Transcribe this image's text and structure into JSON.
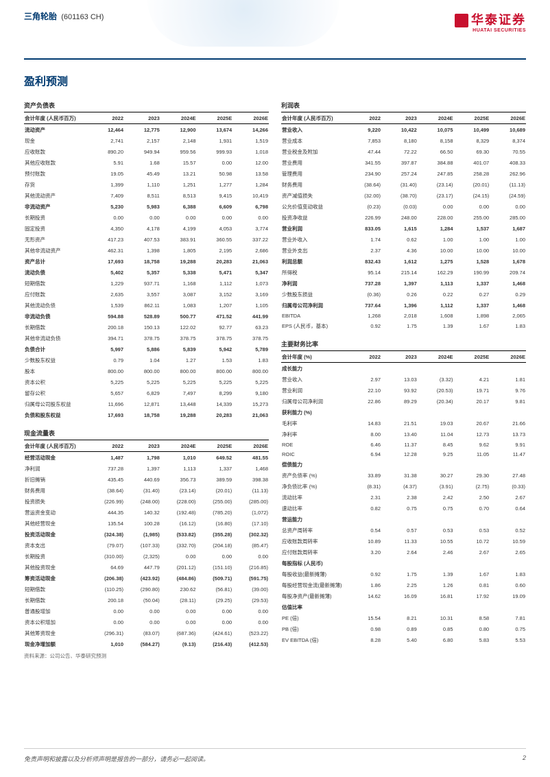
{
  "header": {
    "company_name": "三角轮胎",
    "company_code": "(601163 CH)",
    "logo_cn": "华泰证券",
    "logo_en": "HUATAI SECURITIES"
  },
  "section_title": "盈利预测",
  "years": [
    "2022",
    "2023",
    "2024E",
    "2025E",
    "2026E"
  ],
  "balance_sheet": {
    "title": "资产负债表",
    "unit_label": "会计年度 (人民币百万)",
    "rows": [
      {
        "label": "流动资产",
        "bold": true,
        "v": [
          "12,464",
          "12,775",
          "12,900",
          "13,674",
          "14,266"
        ]
      },
      {
        "label": "现金",
        "v": [
          "2,741",
          "2,157",
          "2,148",
          "1,931",
          "1,519"
        ]
      },
      {
        "label": "应收账款",
        "v": [
          "890.20",
          "949.94",
          "959.56",
          "999.93",
          "1,018"
        ]
      },
      {
        "label": "其他应收账款",
        "v": [
          "5.91",
          "1.68",
          "15.57",
          "0.00",
          "12.00"
        ]
      },
      {
        "label": "预付账款",
        "v": [
          "19.05",
          "45.49",
          "13.21",
          "50.98",
          "13.58"
        ]
      },
      {
        "label": "存货",
        "v": [
          "1,399",
          "1,110",
          "1,251",
          "1,277",
          "1,284"
        ]
      },
      {
        "label": "其他流动资产",
        "v": [
          "7,409",
          "8,511",
          "8,513",
          "9,415",
          "10,419"
        ]
      },
      {
        "label": "非流动资产",
        "bold": true,
        "v": [
          "5,230",
          "5,983",
          "6,388",
          "6,609",
          "6,798"
        ]
      },
      {
        "label": "长期投资",
        "v": [
          "0.00",
          "0.00",
          "0.00",
          "0.00",
          "0.00"
        ]
      },
      {
        "label": "固定投资",
        "v": [
          "4,350",
          "4,178",
          "4,199",
          "4,053",
          "3,774"
        ]
      },
      {
        "label": "无形资产",
        "v": [
          "417.23",
          "407.53",
          "383.91",
          "360.55",
          "337.22"
        ]
      },
      {
        "label": "其他非流动资产",
        "v": [
          "462.31",
          "1,398",
          "1,805",
          "2,195",
          "2,686"
        ]
      },
      {
        "label": "资产总计",
        "bold": true,
        "v": [
          "17,693",
          "18,758",
          "19,288",
          "20,283",
          "21,063"
        ]
      },
      {
        "label": "流动负债",
        "bold": true,
        "v": [
          "5,402",
          "5,357",
          "5,338",
          "5,471",
          "5,347"
        ]
      },
      {
        "label": "短期借款",
        "v": [
          "1,229",
          "937.71",
          "1,168",
          "1,112",
          "1,073"
        ]
      },
      {
        "label": "应付账款",
        "v": [
          "2,635",
          "3,557",
          "3,087",
          "3,152",
          "3,169"
        ]
      },
      {
        "label": "其他流动负债",
        "v": [
          "1,539",
          "862.11",
          "1,083",
          "1,207",
          "1,105"
        ]
      },
      {
        "label": "非流动负债",
        "bold": true,
        "v": [
          "594.88",
          "528.89",
          "500.77",
          "471.52",
          "441.99"
        ]
      },
      {
        "label": "长期借款",
        "v": [
          "200.18",
          "150.13",
          "122.02",
          "92.77",
          "63.23"
        ]
      },
      {
        "label": "其他非流动负债",
        "v": [
          "394.71",
          "378.75",
          "378.75",
          "378.75",
          "378.75"
        ]
      },
      {
        "label": "负债合计",
        "bold": true,
        "v": [
          "5,997",
          "5,886",
          "5,839",
          "5,942",
          "5,789"
        ]
      },
      {
        "label": "少数股东权益",
        "v": [
          "0.79",
          "1.04",
          "1.27",
          "1.53",
          "1.83"
        ]
      },
      {
        "label": "股本",
        "v": [
          "800.00",
          "800.00",
          "800.00",
          "800.00",
          "800.00"
        ]
      },
      {
        "label": "资本公积",
        "v": [
          "5,225",
          "5,225",
          "5,225",
          "5,225",
          "5,225"
        ]
      },
      {
        "label": "留存公积",
        "v": [
          "5,657",
          "6,829",
          "7,497",
          "8,299",
          "9,180"
        ]
      },
      {
        "label": "归属母公司股东权益",
        "v": [
          "11,696",
          "12,871",
          "13,448",
          "14,339",
          "15,273"
        ]
      },
      {
        "label": "负债和股东权益",
        "bold": true,
        "v": [
          "17,693",
          "18,758",
          "19,288",
          "20,283",
          "21,063"
        ]
      }
    ]
  },
  "cash_flow": {
    "title": "现金流量表",
    "unit_label": "会计年度 (人民币百万)",
    "rows": [
      {
        "label": "经营活动现金",
        "bold": true,
        "v": [
          "1,487",
          "1,798",
          "1,010",
          "649.52",
          "481.55"
        ]
      },
      {
        "label": "净利润",
        "v": [
          "737.28",
          "1,397",
          "1,113",
          "1,337",
          "1,468"
        ]
      },
      {
        "label": "折旧摊销",
        "v": [
          "435.45",
          "440.69",
          "356.73",
          "389.59",
          "398.38"
        ]
      },
      {
        "label": "财务费用",
        "v": [
          "(38.64)",
          "(31.40)",
          "(23.14)",
          "(20.01)",
          "(11.13)"
        ]
      },
      {
        "label": "投资损失",
        "v": [
          "(226.99)",
          "(248.00)",
          "(228.00)",
          "(255.00)",
          "(285.00)"
        ]
      },
      {
        "label": "营运资金变动",
        "v": [
          "444.35",
          "140.32",
          "(192.48)",
          "(785.20)",
          "(1,072)"
        ]
      },
      {
        "label": "其他经营现金",
        "v": [
          "135.54",
          "100.28",
          "(16.12)",
          "(16.80)",
          "(17.10)"
        ]
      },
      {
        "label": "投资活动现金",
        "bold": true,
        "v": [
          "(324.38)",
          "(1,985)",
          "(533.82)",
          "(355.28)",
          "(302.32)"
        ]
      },
      {
        "label": "资本支出",
        "v": [
          "(79.07)",
          "(107.33)",
          "(332.70)",
          "(204.18)",
          "(85.47)"
        ]
      },
      {
        "label": "长期投资",
        "v": [
          "(310.00)",
          "(2,325)",
          "0.00",
          "0.00",
          "0.00"
        ]
      },
      {
        "label": "其他投资现金",
        "v": [
          "64.69",
          "447.79",
          "(201.12)",
          "(151.10)",
          "(216.85)"
        ]
      },
      {
        "label": "筹资活动现金",
        "bold": true,
        "v": [
          "(206.38)",
          "(423.92)",
          "(484.86)",
          "(509.71)",
          "(591.75)"
        ]
      },
      {
        "label": "短期借款",
        "v": [
          "(110.25)",
          "(290.80)",
          "230.62",
          "(56.81)",
          "(39.00)"
        ]
      },
      {
        "label": "长期借款",
        "v": [
          "200.18",
          "(50.04)",
          "(28.11)",
          "(29.25)",
          "(29.53)"
        ]
      },
      {
        "label": "普通股增加",
        "v": [
          "0.00",
          "0.00",
          "0.00",
          "0.00",
          "0.00"
        ]
      },
      {
        "label": "资本公积增加",
        "v": [
          "0.00",
          "0.00",
          "0.00",
          "0.00",
          "0.00"
        ]
      },
      {
        "label": "其他筹资现金",
        "v": [
          "(296.31)",
          "(83.07)",
          "(687.36)",
          "(424.61)",
          "(523.22)"
        ]
      },
      {
        "label": "现金净增加额",
        "bold": true,
        "v": [
          "1,010",
          "(584.27)",
          "(9.13)",
          "(216.43)",
          "(412.53)"
        ]
      }
    ]
  },
  "income_statement": {
    "title": "利润表",
    "unit_label": "会计年度 (人民币百万)",
    "rows": [
      {
        "label": "营业收入",
        "bold": true,
        "v": [
          "9,220",
          "10,422",
          "10,075",
          "10,499",
          "10,689"
        ]
      },
      {
        "label": "营业成本",
        "v": [
          "7,853",
          "8,180",
          "8,158",
          "8,329",
          "8,374"
        ]
      },
      {
        "label": "营业税金及附加",
        "v": [
          "47.44",
          "72.22",
          "66.50",
          "69.30",
          "70.55"
        ]
      },
      {
        "label": "营业费用",
        "v": [
          "341.55",
          "397.87",
          "384.88",
          "401.07",
          "408.33"
        ]
      },
      {
        "label": "管理费用",
        "v": [
          "234.90",
          "257.24",
          "247.85",
          "258.28",
          "262.96"
        ]
      },
      {
        "label": "财务费用",
        "v": [
          "(38.64)",
          "(31.40)",
          "(23.14)",
          "(20.01)",
          "(11.13)"
        ]
      },
      {
        "label": "资产减值损失",
        "v": [
          "(32.00)",
          "(38.70)",
          "(23.17)",
          "(24.15)",
          "(24.59)"
        ]
      },
      {
        "label": "公允价值变动收益",
        "v": [
          "(0.23)",
          "(0.03)",
          "0.00",
          "0.00",
          "0.00"
        ]
      },
      {
        "label": "投资净收益",
        "v": [
          "226.99",
          "248.00",
          "228.00",
          "255.00",
          "285.00"
        ]
      },
      {
        "label": "营业利润",
        "bold": true,
        "v": [
          "833.05",
          "1,615",
          "1,284",
          "1,537",
          "1,687"
        ]
      },
      {
        "label": "营业外收入",
        "v": [
          "1.74",
          "0.62",
          "1.00",
          "1.00",
          "1.00"
        ]
      },
      {
        "label": "营业外支出",
        "v": [
          "2.37",
          "4.36",
          "10.00",
          "10.00",
          "10.00"
        ]
      },
      {
        "label": "利润总额",
        "bold": true,
        "v": [
          "832.43",
          "1,612",
          "1,275",
          "1,528",
          "1,678"
        ]
      },
      {
        "label": "所得税",
        "v": [
          "95.14",
          "215.14",
          "162.29",
          "190.99",
          "209.74"
        ]
      },
      {
        "label": "净利润",
        "bold": true,
        "v": [
          "737.28",
          "1,397",
          "1,113",
          "1,337",
          "1,468"
        ]
      },
      {
        "label": "少数股东损益",
        "v": [
          "(0.36)",
          "0.26",
          "0.22",
          "0.27",
          "0.29"
        ]
      },
      {
        "label": "归属母公司净利润",
        "bold": true,
        "v": [
          "737.64",
          "1,396",
          "1,112",
          "1,337",
          "1,468"
        ]
      },
      {
        "label": "EBITDA",
        "v": [
          "1,268",
          "2,018",
          "1,608",
          "1,898",
          "2,065"
        ]
      },
      {
        "label": "EPS (人民币，基本)",
        "v": [
          "0.92",
          "1.75",
          "1.39",
          "1.67",
          "1.83"
        ]
      }
    ]
  },
  "ratios": {
    "title": "主要财务比率",
    "unit_label": "会计年度 (%)",
    "groups": [
      {
        "head": "成长能力",
        "rows": [
          {
            "label": "营业收入",
            "v": [
              "2.97",
              "13.03",
              "(3.32)",
              "4.21",
              "1.81"
            ]
          },
          {
            "label": "营业利润",
            "v": [
              "22.10",
              "93.92",
              "(20.53)",
              "19.71",
              "9.76"
            ]
          },
          {
            "label": "归属母公司净利润",
            "v": [
              "22.86",
              "89.29",
              "(20.34)",
              "20.17",
              "9.81"
            ]
          }
        ]
      },
      {
        "head": "获利能力 (%)",
        "rows": [
          {
            "label": "毛利率",
            "v": [
              "14.83",
              "21.51",
              "19.03",
              "20.67",
              "21.66"
            ]
          },
          {
            "label": "净利率",
            "v": [
              "8.00",
              "13.40",
              "11.04",
              "12.73",
              "13.73"
            ]
          },
          {
            "label": "ROE",
            "v": [
              "6.46",
              "11.37",
              "8.45",
              "9.62",
              "9.91"
            ]
          },
          {
            "label": "ROIC",
            "v": [
              "6.94",
              "12.28",
              "9.25",
              "11.05",
              "11.47"
            ]
          }
        ]
      },
      {
        "head": "偿债能力",
        "rows": [
          {
            "label": "资产负债率 (%)",
            "v": [
              "33.89",
              "31.38",
              "30.27",
              "29.30",
              "27.48"
            ]
          },
          {
            "label": "净负债比率 (%)",
            "v": [
              "(8.31)",
              "(4.37)",
              "(3.91)",
              "(2.75)",
              "(0.33)"
            ]
          },
          {
            "label": "流动比率",
            "v": [
              "2.31",
              "2.38",
              "2.42",
              "2.50",
              "2.67"
            ]
          },
          {
            "label": "速动比率",
            "v": [
              "0.82",
              "0.75",
              "0.75",
              "0.70",
              "0.64"
            ]
          }
        ]
      },
      {
        "head": "营运能力",
        "rows": [
          {
            "label": "总资产周转率",
            "v": [
              "0.54",
              "0.57",
              "0.53",
              "0.53",
              "0.52"
            ]
          },
          {
            "label": "应收账款周转率",
            "v": [
              "10.89",
              "11.33",
              "10.55",
              "10.72",
              "10.59"
            ]
          },
          {
            "label": "应付账款周转率",
            "v": [
              "3.20",
              "2.64",
              "2.46",
              "2.67",
              "2.65"
            ]
          }
        ]
      },
      {
        "head": "每股指标 (人民币)",
        "rows": [
          {
            "label": "每股收益(最新摊薄)",
            "v": [
              "0.92",
              "1.75",
              "1.39",
              "1.67",
              "1.83"
            ]
          },
          {
            "label": "每股经营现金流(最新摊薄)",
            "v": [
              "1.86",
              "2.25",
              "1.26",
              "0.81",
              "0.60"
            ]
          },
          {
            "label": "每股净资产(最新摊薄)",
            "v": [
              "14.62",
              "16.09",
              "16.81",
              "17.92",
              "19.09"
            ]
          }
        ]
      },
      {
        "head": "估值比率",
        "rows": [
          {
            "label": "PE (倍)",
            "v": [
              "15.54",
              "8.21",
              "10.31",
              "8.58",
              "7.81"
            ]
          },
          {
            "label": "PB (倍)",
            "v": [
              "0.98",
              "0.89",
              "0.85",
              "0.80",
              "0.75"
            ]
          },
          {
            "label": "EV EBITDA (倍)",
            "v": [
              "8.28",
              "5.40",
              "6.80",
              "5.83",
              "5.53"
            ]
          }
        ]
      }
    ]
  },
  "source": "资料来源：公司公告、华泰研究预测",
  "footer": {
    "disclaimer": "免责声明和披露以及分析师声明是报告的一部分，请务必一起阅读。",
    "page": "2"
  }
}
